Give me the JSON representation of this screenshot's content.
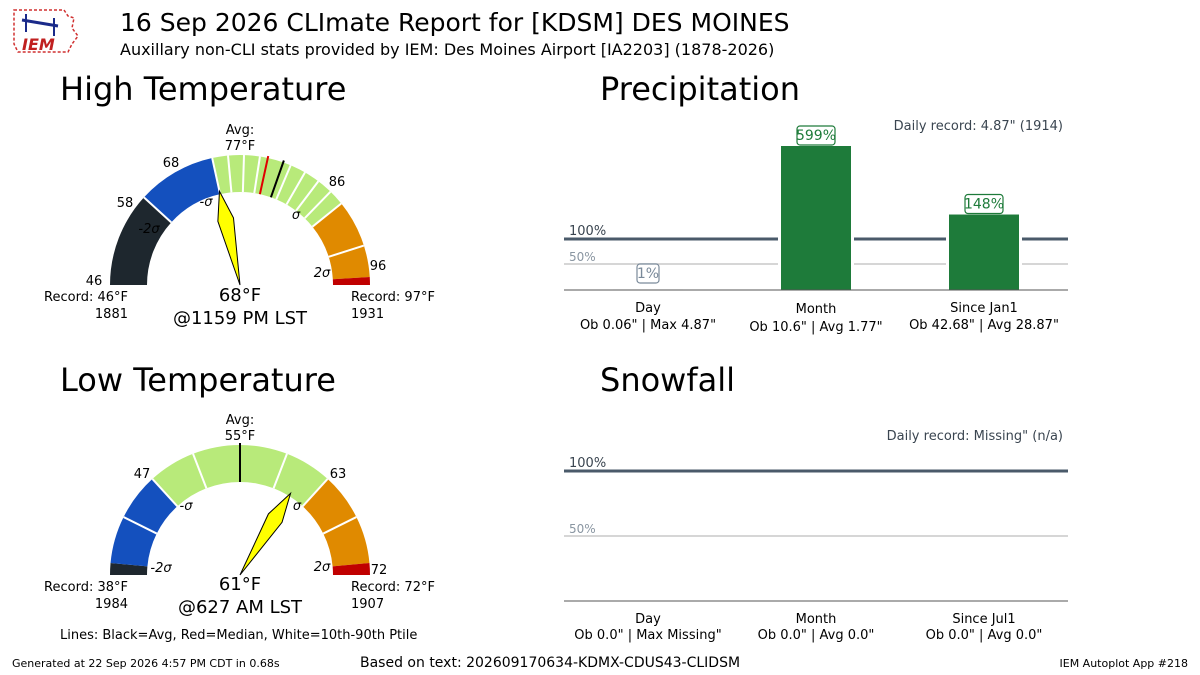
{
  "header": {
    "logo_text": "IEM",
    "title": "16 Sep 2026 CLImate Report for [KDSM] DES MOINES",
    "subtitle": "Auxillary non-CLI stats provided by IEM: Des Moines Airport [IA2203] (1878-2026)"
  },
  "colors": {
    "below_2sigma": "#1e272e",
    "below_sigma": "#1450be",
    "normal": "#b8ea7a",
    "above_sigma": "#e08a00",
    "above_2sigma": "#c00000",
    "needle": "#ffff00",
    "bar": "#1e7b3a",
    "reference_line": "#4a5a6a",
    "half_line": "#c8c8c8"
  },
  "high_temp": {
    "panel_title": "High Temperature",
    "avg_label": "Avg:",
    "avg_value": "77°F",
    "record_low_label": "Record: 46°F",
    "record_low_year": "1881",
    "record_high_label": "Record: 97°F",
    "record_high_year": "1931",
    "observed": "68°F",
    "observed_time": "@1159 PM LST",
    "tick_labels": [
      "46",
      "58",
      "68",
      "86",
      "96"
    ],
    "sigma_labels": [
      "-2σ",
      "-σ",
      "σ",
      "2σ"
    ],
    "gauge": {
      "min": 46,
      "max": 97,
      "bands": [
        [
          46,
          58,
          "below_2sigma"
        ],
        [
          58,
          68,
          "below_sigma"
        ],
        [
          68,
          86,
          "normal"
        ],
        [
          86,
          96,
          "above_sigma"
        ],
        [
          96,
          97,
          "above_2sigma"
        ]
      ],
      "percentile_lines": [
        58,
        68,
        70,
        72,
        74,
        78,
        80,
        82,
        84,
        86,
        92
      ],
      "avg": 77,
      "median": 75,
      "observed": 68
    }
  },
  "low_temp": {
    "panel_title": "Low Temperature",
    "avg_label": "Avg:",
    "avg_value": "55°F",
    "record_low_label": "Record: 38°F",
    "record_low_year": "1984",
    "record_high_label": "Record: 72°F",
    "record_high_year": "1907",
    "observed": "61°F",
    "observed_time": "@627 AM LST",
    "tick_labels": [
      "47",
      "63",
      "72"
    ],
    "sigma_labels": [
      "-2σ",
      "-σ",
      "σ",
      "2σ"
    ],
    "gauge": {
      "min": 38,
      "max": 72,
      "bands": [
        [
          38,
          39,
          "below_2sigma"
        ],
        [
          39,
          47,
          "below_sigma"
        ],
        [
          47,
          63,
          "normal"
        ],
        [
          63,
          71,
          "above_sigma"
        ],
        [
          71,
          72,
          "above_2sigma"
        ]
      ],
      "percentile_lines": [
        43,
        47,
        51,
        55,
        59,
        63,
        67
      ],
      "avg": 55,
      "median": 55,
      "observed": 61
    }
  },
  "lines_legend": "Lines: Black=Avg, Red=Median, White=10th-90th Ptile",
  "chart_data": [
    {
      "type": "bar",
      "title": "Precipitation",
      "annotation": "Daily record: 4.87\" (1914)",
      "reference_lines": [
        "100%",
        "50%"
      ],
      "categories": [
        "Day",
        "Month",
        "Since Jan1"
      ],
      "category_details": [
        "Ob 0.06\" | Max 4.87\"",
        "Ob 10.6\" | Avg 1.77\"",
        "Ob 42.68\" | Avg 28.87\""
      ],
      "values": [
        1,
        599,
        148
      ],
      "value_labels": [
        "1%",
        "599%",
        "148%"
      ]
    },
    {
      "type": "bar",
      "title": "Snowfall",
      "annotation": "Daily record: Missing\" (n/a)",
      "reference_lines": [
        "100%",
        "50%"
      ],
      "categories": [
        "Day",
        "Month",
        "Since Jul1"
      ],
      "category_details": [
        "Ob 0.0\" | Max Missing\"",
        "Ob 0.0\" | Avg 0.0\"",
        "Ob 0.0\" | Avg 0.0\""
      ],
      "values": [
        0,
        0,
        0
      ],
      "value_labels": []
    }
  ],
  "footer": {
    "generated": "Generated at 22 Sep 2026 4:57 PM CDT in 0.68s",
    "source_text": "Based on text: 202609170634-KDMX-CDUS43-CLIDSM",
    "app": "IEM Autoplot App #218"
  }
}
